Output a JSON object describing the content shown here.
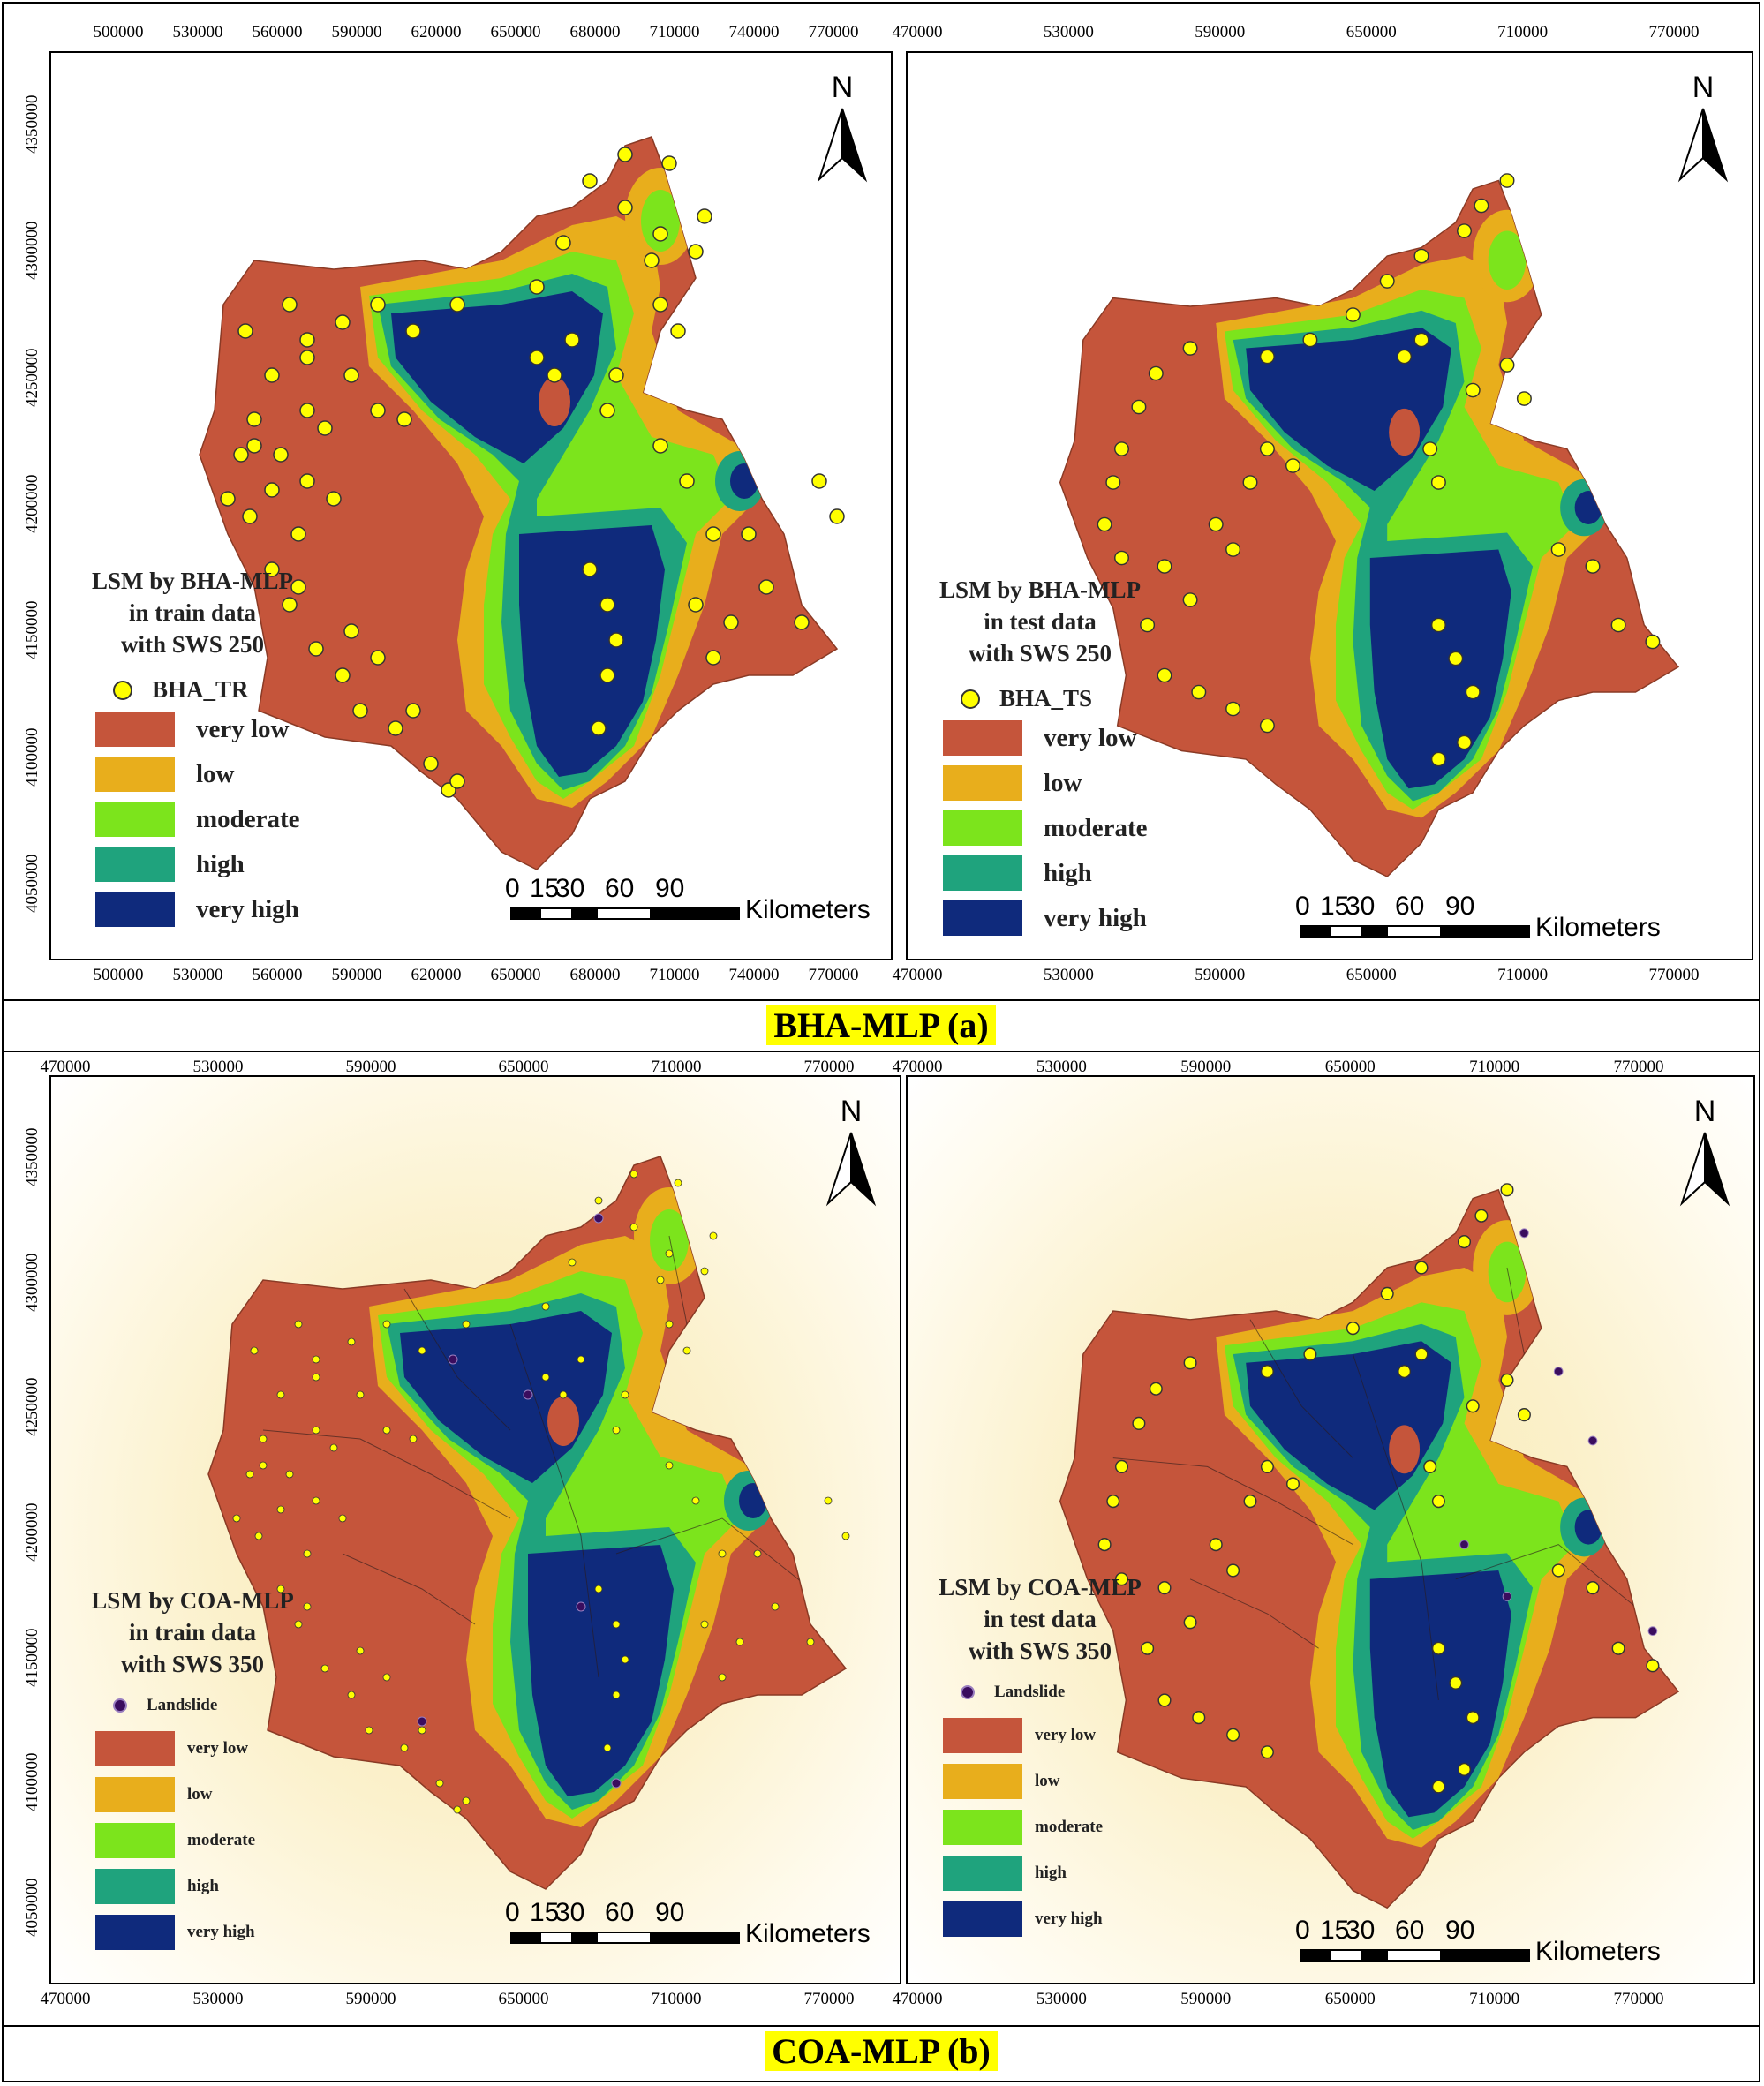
{
  "figure": {
    "caption_a": "BHA-MLP (a)",
    "caption_b": "COA-MLP (b)"
  },
  "colors": {
    "very_low": "#c5553b",
    "low": "#e8ae1c",
    "moderate": "#7ce41c",
    "high": "#1fa37d",
    "very_high": "#0f2a7c",
    "point": "#ffff00",
    "landslide": "#3a0d5e"
  },
  "panels": {
    "a_train": {
      "x_ticks": [
        "500000",
        "530000",
        "560000",
        "590000",
        "620000",
        "650000",
        "680000",
        "710000",
        "740000",
        "770000"
      ],
      "y_ticks": [
        "4350000",
        "4300000",
        "4250000",
        "4200000",
        "4150000",
        "4100000",
        "4050000"
      ],
      "title_lines": [
        "LSM by BHA-MLP",
        "in train data",
        "with SWS 250"
      ],
      "point_label": "BHA_TR",
      "legend": [
        "very low",
        "low",
        "moderate",
        "high",
        "very high"
      ],
      "north": "N",
      "scale_numbers": [
        "0",
        "15",
        "30",
        "60",
        "90"
      ],
      "scale_unit": "Kilometers"
    },
    "a_test": {
      "x_ticks": [
        "470000",
        "530000",
        "590000",
        "650000",
        "710000",
        "770000"
      ],
      "title_lines": [
        "LSM by BHA-MLP",
        "in test data",
        "with SWS 250"
      ],
      "point_label": "BHA_TS",
      "legend": [
        "very low",
        "low",
        "moderate",
        "high",
        "very high"
      ],
      "north": "N",
      "scale_numbers": [
        "0",
        "15",
        "30",
        "60",
        "90"
      ],
      "scale_unit": "Kilometers"
    },
    "b_train": {
      "x_ticks": [
        "470000",
        "530000",
        "590000",
        "650000",
        "710000",
        "770000"
      ],
      "y_ticks": [
        "4350000",
        "4300000",
        "4250000",
        "4200000",
        "4150000",
        "4100000",
        "4050000"
      ],
      "title_lines": [
        "LSM by COA-MLP",
        "in train data",
        "with SWS 350"
      ],
      "point_label": "Landslide",
      "legend": [
        "very low",
        "low",
        "moderate",
        "high",
        "very high"
      ],
      "north": "N",
      "scale_numbers": [
        "0",
        "15",
        "30",
        "60",
        "90"
      ],
      "scale_unit": "Kilometers"
    },
    "b_test": {
      "x_ticks": [
        "470000",
        "530000",
        "590000",
        "650000",
        "710000",
        "770000"
      ],
      "title_lines": [
        "LSM by COA-MLP",
        "in test data",
        "with SWS 350"
      ],
      "point_label": "Landslide",
      "legend": [
        "very low",
        "low",
        "moderate",
        "high",
        "very high"
      ],
      "north": "N",
      "scale_numbers": [
        "0",
        "15",
        "30",
        "60",
        "90"
      ],
      "scale_unit": "Kilometers"
    }
  }
}
